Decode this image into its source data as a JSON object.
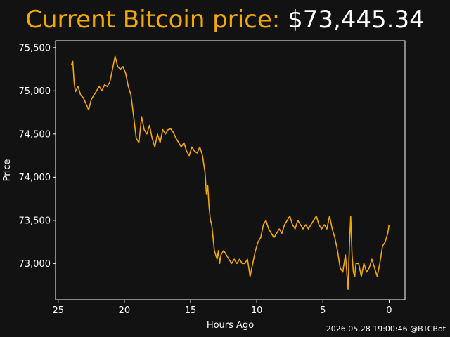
{
  "header": {
    "title_label": "Current Bitcoin price: ",
    "title_price": "$73,445.34"
  },
  "footer": {
    "timestamp": "2026.05.28 19:00:46 @BTCBot"
  },
  "colors": {
    "background": "#121212",
    "accent": "#f2a900",
    "text": "#ffffff",
    "axis": "#ffffff"
  },
  "chart_data": {
    "type": "line",
    "title": "Current Bitcoin price: $73,445.34",
    "xlabel": "Hours Ago",
    "ylabel": "Price",
    "x_reversed": true,
    "xlim": [
      25.2,
      -1.2
    ],
    "ylim": [
      72580,
      75580
    ],
    "x_ticks": [
      25,
      20,
      15,
      10,
      5,
      0
    ],
    "x_tick_labels": [
      "25",
      "20",
      "15",
      "10",
      "5",
      "0"
    ],
    "y_ticks": [
      73000,
      73500,
      74000,
      74500,
      75000,
      75500
    ],
    "y_tick_labels": [
      "73,000",
      "73,500",
      "74,000",
      "74,500",
      "75,000",
      "75,500"
    ],
    "grid": false,
    "legend": "none",
    "series": [
      {
        "color": "#f2a900",
        "x": [
          24.0,
          23.9,
          23.8,
          23.7,
          23.5,
          23.3,
          23.1,
          22.9,
          22.7,
          22.5,
          22.3,
          22.1,
          21.9,
          21.7,
          21.5,
          21.3,
          21.1,
          20.9,
          20.7,
          20.5,
          20.3,
          20.1,
          19.9,
          19.7,
          19.5,
          19.3,
          19.1,
          18.9,
          18.7,
          18.5,
          18.3,
          18.1,
          17.9,
          17.7,
          17.5,
          17.3,
          17.1,
          16.9,
          16.7,
          16.5,
          16.3,
          16.1,
          15.9,
          15.7,
          15.5,
          15.3,
          15.1,
          14.9,
          14.7,
          14.5,
          14.3,
          14.1,
          13.9,
          13.8,
          13.7,
          13.6,
          13.5,
          13.4,
          13.3,
          13.2,
          13.1,
          13.0,
          12.9,
          12.8,
          12.7,
          12.5,
          12.3,
          12.1,
          11.9,
          11.7,
          11.5,
          11.3,
          11.1,
          10.9,
          10.7,
          10.5,
          10.3,
          10.1,
          9.9,
          9.7,
          9.5,
          9.3,
          9.1,
          8.9,
          8.7,
          8.5,
          8.3,
          8.1,
          7.9,
          7.7,
          7.5,
          7.3,
          7.1,
          6.9,
          6.7,
          6.5,
          6.3,
          6.1,
          5.9,
          5.7,
          5.5,
          5.3,
          5.1,
          4.9,
          4.7,
          4.5,
          4.3,
          4.1,
          3.9,
          3.7,
          3.5,
          3.3,
          3.2,
          3.1,
          3.0,
          2.9,
          2.8,
          2.7,
          2.6,
          2.5,
          2.3,
          2.1,
          1.9,
          1.7,
          1.5,
          1.3,
          1.1,
          0.9,
          0.7,
          0.5,
          0.3,
          0.1,
          0.0
        ],
        "y": [
          75300,
          75340,
          75100,
          74990,
          75050,
          74950,
          74920,
          74850,
          74780,
          74900,
          74950,
          75000,
          75050,
          75000,
          75070,
          75050,
          75100,
          75250,
          75400,
          75280,
          75250,
          75280,
          75200,
          75050,
          74950,
          74700,
          74450,
          74400,
          74700,
          74550,
          74500,
          74600,
          74450,
          74350,
          74500,
          74400,
          74550,
          74500,
          74550,
          74560,
          74520,
          74450,
          74400,
          74350,
          74400,
          74300,
          74250,
          74350,
          74300,
          74280,
          74350,
          74250,
          74050,
          73800,
          73900,
          73650,
          73500,
          73450,
          73300,
          73150,
          73100,
          73050,
          73150,
          73000,
          73100,
          73150,
          73100,
          73050,
          73000,
          73050,
          73000,
          73050,
          73000,
          73000,
          73050,
          72850,
          73000,
          73150,
          73250,
          73300,
          73450,
          73500,
          73400,
          73350,
          73300,
          73350,
          73400,
          73350,
          73450,
          73500,
          73550,
          73450,
          73400,
          73500,
          73450,
          73400,
          73450,
          73400,
          73450,
          73500,
          73550,
          73450,
          73400,
          73450,
          73400,
          73550,
          73400,
          73300,
          73150,
          72950,
          72900,
          73100,
          72900,
          72700,
          73200,
          73550,
          73100,
          72900,
          72850,
          73000,
          73000,
          72850,
          73000,
          72900,
          72950,
          73050,
          72950,
          72850,
          73000,
          73200,
          73250,
          73350,
          73450
        ]
      }
    ]
  }
}
